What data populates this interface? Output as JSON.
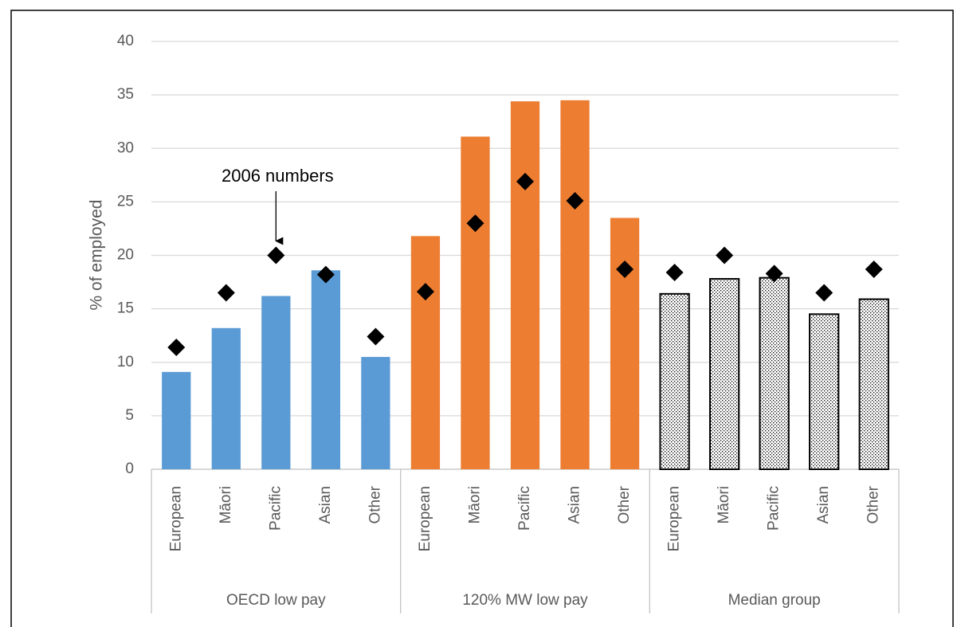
{
  "chart_data": {
    "type": "grouped_bar_marker",
    "ylabel": "% of employed",
    "ylim": [
      0,
      40
    ],
    "yticks": [
      0,
      5,
      10,
      15,
      20,
      25,
      30,
      35,
      40
    ],
    "grid": true,
    "marker_color": "#000000",
    "annotation": "2006 numbers",
    "groups": [
      {
        "name": "OECD low pay",
        "color": "#5b9bd5",
        "categories": [
          "European",
          "Māori",
          "Pacific",
          "Asian",
          "Other"
        ],
        "values": [
          9.1,
          13.2,
          16.2,
          18.6,
          10.5
        ],
        "values_2006": [
          11.4,
          16.5,
          20.0,
          18.2,
          12.4
        ]
      },
      {
        "name": "120% MW low pay",
        "color": "#ed7d31",
        "categories": [
          "European",
          "Māori",
          "Pacific",
          "Asian",
          "Other"
        ],
        "values": [
          21.8,
          31.1,
          34.4,
          34.5,
          23.5
        ],
        "values_2006": [
          16.6,
          23.0,
          26.9,
          25.1,
          18.7
        ]
      },
      {
        "name": "Median group",
        "color": "#ffffff",
        "pattern": "dots",
        "edgecolor": "#000000",
        "categories": [
          "European",
          "Māori",
          "Pacific",
          "Asian",
          "Other"
        ],
        "values": [
          16.4,
          17.8,
          17.9,
          14.5,
          15.9
        ],
        "values_2006": [
          18.4,
          20.0,
          18.3,
          16.5,
          18.7
        ]
      }
    ]
  }
}
